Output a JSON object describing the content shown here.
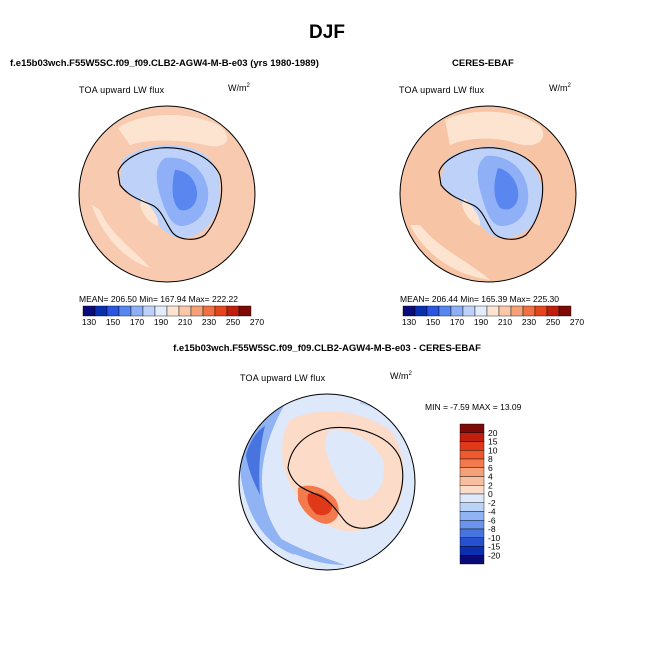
{
  "figure": {
    "title": "DJF",
    "top_left_subtitle": "f.e15b03wch.F55W5SC.f09_f09.CLB2-AGW4-M-B-e03 (yrs 1980-1989)",
    "top_right_subtitle": "CERES-EBAF",
    "bottom_subtitle": "f.e15b03wch.F55W5SC.f09_f09.CLB2-AGW4-M-B-e03 - CERES-EBAF"
  },
  "chart_data": [
    {
      "type": "heatmap",
      "projection": "south polar stereographic",
      "variable_label": "TOA upward LW flux",
      "units_label": "W/m",
      "units_superscript": "2",
      "stats": {
        "mean": 206.5,
        "min": 167.94,
        "max": 222.22
      },
      "stats_text": "MEAN= 206.50  Min= 167.94  Max= 222.22",
      "colorbar": {
        "orientation": "horizontal",
        "levels": [
          130,
          150,
          170,
          190,
          210,
          230,
          250,
          270
        ],
        "level_labels": [
          "130",
          "150",
          "170",
          "190",
          "210",
          "230",
          "250",
          "270"
        ],
        "colors": [
          "#0a0a78",
          "#0a2fb0",
          "#2a55e0",
          "#5a87ef",
          "#8fb0f6",
          "#bed2f9",
          "#e2ecfb",
          "#fde4d0",
          "#fbc7a9",
          "#f6a077",
          "#ef7043",
          "#e5451d",
          "#bf200d",
          "#7d0a06"
        ]
      }
    },
    {
      "type": "heatmap",
      "projection": "south polar stereographic",
      "variable_label": "TOA upward LW flux",
      "units_label": "W/m",
      "units_superscript": "2",
      "stats": {
        "mean": 206.44,
        "min": 165.39,
        "max": 225.3
      },
      "stats_text": "MEAN= 206.44  Min= 165.39  Max= 225.30",
      "colorbar": {
        "orientation": "horizontal",
        "levels": [
          130,
          150,
          170,
          190,
          210,
          230,
          250,
          270
        ],
        "level_labels": [
          "130",
          "150",
          "170",
          "190",
          "210",
          "230",
          "250",
          "270"
        ],
        "colors": [
          "#0a0a78",
          "#0a2fb0",
          "#2a55e0",
          "#5a87ef",
          "#8fb0f6",
          "#bed2f9",
          "#e2ecfb",
          "#fde4d0",
          "#fbc7a9",
          "#f6a077",
          "#ef7043",
          "#e5451d",
          "#bf200d",
          "#7d0a06"
        ]
      }
    },
    {
      "type": "heatmap",
      "projection": "south polar stereographic",
      "variable_label": "TOA upward LW flux",
      "units_label": "W/m",
      "units_superscript": "2",
      "stats": {
        "min": -7.59,
        "max": 13.09
      },
      "stats_text": "MIN =  -7.59 MAX =  13.09",
      "colorbar": {
        "orientation": "vertical",
        "level_labels": [
          "20",
          "15",
          "10",
          "8",
          "6",
          "4",
          "2",
          "0",
          "-2",
          "-4",
          "-6",
          "-8",
          "-10",
          "-15",
          "-20"
        ],
        "colors": [
          "#7d0a06",
          "#bf200d",
          "#e0391a",
          "#ee5a2e",
          "#f27a4d",
          "#f6a077",
          "#f9bea0",
          "#fcdcc8",
          "#dde8fb",
          "#bcd3f8",
          "#8fb3f3",
          "#6b95ec",
          "#4874e0",
          "#2550cf",
          "#0a2fb0",
          "#0a0a78"
        ]
      }
    }
  ]
}
